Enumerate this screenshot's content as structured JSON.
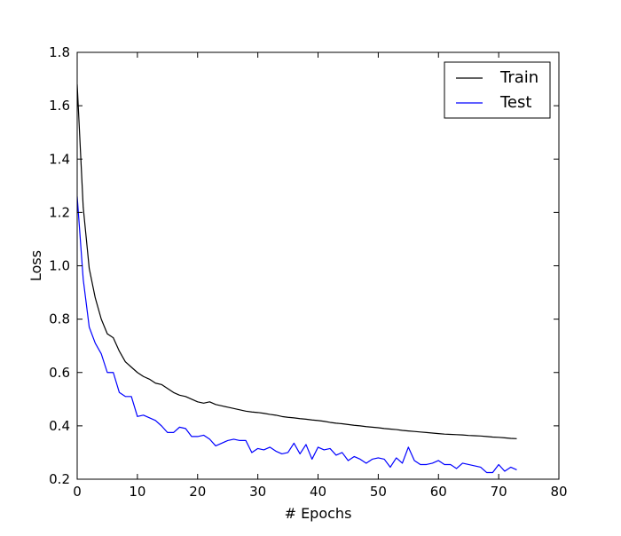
{
  "chart_data": {
    "type": "line",
    "title": "",
    "xlabel": "# Epochs",
    "ylabel": "Loss",
    "xlim": [
      0,
      80
    ],
    "ylim": [
      0.2,
      1.8
    ],
    "xticks": [
      0,
      10,
      20,
      30,
      40,
      50,
      60,
      70,
      80
    ],
    "yticks": [
      0.2,
      0.4,
      0.6,
      0.8,
      1.0,
      1.2,
      1.4,
      1.6,
      1.8
    ],
    "xtick_labels": [
      "0",
      "10",
      "20",
      "30",
      "40",
      "50",
      "60",
      "70",
      "80"
    ],
    "ytick_labels": [
      "0.2",
      "0.4",
      "0.6",
      "0.8",
      "1.0",
      "1.2",
      "1.4",
      "1.6",
      "1.8"
    ],
    "grid": false,
    "legend_position": "top-right",
    "x": [
      0,
      1,
      2,
      3,
      4,
      5,
      6,
      7,
      8,
      9,
      10,
      11,
      12,
      13,
      14,
      15,
      16,
      17,
      18,
      19,
      20,
      21,
      22,
      23,
      24,
      25,
      26,
      27,
      28,
      29,
      30,
      31,
      32,
      33,
      34,
      35,
      36,
      37,
      38,
      39,
      40,
      41,
      42,
      43,
      44,
      45,
      46,
      47,
      48,
      49,
      50,
      51,
      52,
      53,
      54,
      55,
      56,
      57,
      58,
      59,
      60,
      61,
      62,
      63,
      64,
      65,
      66,
      67,
      68,
      69,
      70,
      71,
      72,
      73
    ],
    "series": [
      {
        "name": "Train",
        "color": "#000000",
        "values": [
          1.68,
          1.22,
          0.99,
          0.88,
          0.8,
          0.745,
          0.73,
          0.68,
          0.64,
          0.62,
          0.6,
          0.585,
          0.575,
          0.56,
          0.555,
          0.54,
          0.525,
          0.515,
          0.51,
          0.5,
          0.49,
          0.485,
          0.49,
          0.48,
          0.475,
          0.47,
          0.465,
          0.46,
          0.455,
          0.452,
          0.45,
          0.447,
          0.443,
          0.44,
          0.435,
          0.432,
          0.43,
          0.427,
          0.425,
          0.422,
          0.42,
          0.417,
          0.413,
          0.41,
          0.408,
          0.405,
          0.402,
          0.4,
          0.397,
          0.395,
          0.393,
          0.39,
          0.388,
          0.386,
          0.383,
          0.381,
          0.379,
          0.377,
          0.375,
          0.373,
          0.371,
          0.369,
          0.368,
          0.367,
          0.366,
          0.364,
          0.363,
          0.362,
          0.36,
          0.358,
          0.357,
          0.355,
          0.353,
          0.352
        ]
      },
      {
        "name": "Test",
        "color": "#0000ff",
        "values": [
          1.26,
          0.95,
          0.77,
          0.71,
          0.67,
          0.6,
          0.6,
          0.525,
          0.51,
          0.51,
          0.435,
          0.44,
          0.43,
          0.42,
          0.4,
          0.375,
          0.375,
          0.395,
          0.39,
          0.36,
          0.36,
          0.365,
          0.35,
          0.325,
          0.335,
          0.345,
          0.35,
          0.345,
          0.345,
          0.3,
          0.315,
          0.31,
          0.32,
          0.305,
          0.295,
          0.3,
          0.335,
          0.295,
          0.33,
          0.275,
          0.32,
          0.31,
          0.315,
          0.29,
          0.3,
          0.27,
          0.285,
          0.275,
          0.26,
          0.275,
          0.28,
          0.275,
          0.245,
          0.28,
          0.26,
          0.32,
          0.27,
          0.255,
          0.255,
          0.26,
          0.27,
          0.255,
          0.255,
          0.24,
          0.26,
          0.255,
          0.25,
          0.245,
          0.225,
          0.225,
          0.255,
          0.23,
          0.245,
          0.235
        ]
      }
    ]
  }
}
